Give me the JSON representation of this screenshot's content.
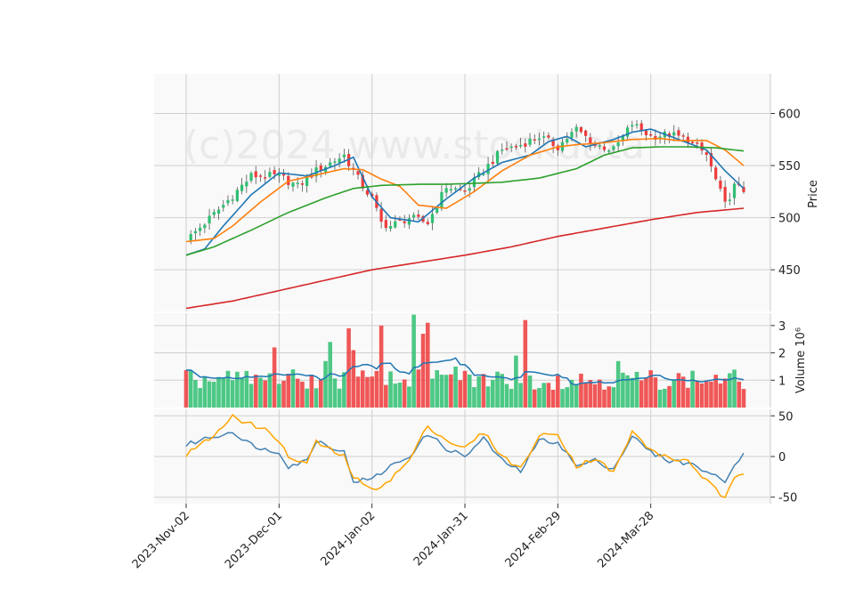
{
  "chart_data": [
    {
      "type": "candlestick",
      "panel": "price",
      "ylabel": "Price",
      "ylim": [
        410,
        638
      ],
      "yticks": [
        450,
        500,
        550,
        600
      ],
      "watermark": "(c)2024 www.stockdata",
      "grid": true,
      "xticks": [
        "2023-Nov-02",
        "2023-Dec-01",
        "2024-Jan-02",
        "2024-Jan-31",
        "2024-Feb-29",
        "2024-Mar-28"
      ],
      "xtick_index": [
        0,
        20,
        40,
        60,
        80,
        100
      ],
      "trading_days": 120,
      "up_color": "#2fbf71",
      "down_color": "#ef3b3b",
      "close_anchors": [
        [
          0,
          478
        ],
        [
          8,
          512
        ],
        [
          14,
          540
        ],
        [
          20,
          540
        ],
        [
          24,
          530
        ],
        [
          28,
          545
        ],
        [
          34,
          560
        ],
        [
          38,
          530
        ],
        [
          40,
          518
        ],
        [
          42,
          495
        ],
        [
          44,
          492
        ],
        [
          48,
          500
        ],
        [
          52,
          495
        ],
        [
          56,
          530
        ],
        [
          60,
          525
        ],
        [
          64,
          545
        ],
        [
          68,
          565
        ],
        [
          72,
          570
        ],
        [
          76,
          578
        ],
        [
          80,
          568
        ],
        [
          84,
          585
        ],
        [
          88,
          570
        ],
        [
          92,
          565
        ],
        [
          96,
          590
        ],
        [
          100,
          578
        ],
        [
          104,
          580
        ],
        [
          108,
          575
        ],
        [
          112,
          560
        ],
        [
          116,
          512
        ],
        [
          118,
          530
        ],
        [
          120,
          526
        ]
      ],
      "moving_averages": [
        {
          "color": "#1f77b4",
          "anchors": [
            [
              0,
              464
            ],
            [
              4,
              470
            ],
            [
              8,
              492
            ],
            [
              14,
              522
            ],
            [
              20,
              543
            ],
            [
              26,
              540
            ],
            [
              32,
              550
            ],
            [
              36,
              558
            ],
            [
              40,
              520
            ],
            [
              44,
              500
            ],
            [
              50,
              496
            ],
            [
              56,
              518
            ],
            [
              62,
              538
            ],
            [
              68,
              553
            ],
            [
              74,
              560
            ],
            [
              78,
              573
            ],
            [
              82,
              578
            ],
            [
              86,
              568
            ],
            [
              92,
              575
            ],
            [
              96,
              582
            ],
            [
              100,
              585
            ],
            [
              106,
              575
            ],
            [
              112,
              565
            ],
            [
              116,
              545
            ],
            [
              120,
              528
            ]
          ]
        },
        {
          "color": "#ff7f0e",
          "anchors": [
            [
              0,
              477
            ],
            [
              6,
              480
            ],
            [
              10,
              492
            ],
            [
              16,
              515
            ],
            [
              22,
              535
            ],
            [
              28,
              541
            ],
            [
              34,
              547
            ],
            [
              38,
              546
            ],
            [
              42,
              537
            ],
            [
              46,
              530
            ],
            [
              50,
              512
            ],
            [
              56,
              509
            ],
            [
              62,
              525
            ],
            [
              68,
              545
            ],
            [
              74,
              560
            ],
            [
              80,
              568
            ],
            [
              84,
              570
            ],
            [
              90,
              572
            ],
            [
              96,
              575
            ],
            [
              102,
              576
            ],
            [
              106,
              574
            ],
            [
              112,
              574
            ],
            [
              116,
              565
            ],
            [
              120,
              550
            ]
          ]
        },
        {
          "color": "#2ca02c",
          "anchors": [
            [
              0,
              464
            ],
            [
              6,
              472
            ],
            [
              14,
              488
            ],
            [
              22,
              505
            ],
            [
              30,
              519
            ],
            [
              36,
              528
            ],
            [
              42,
              531
            ],
            [
              50,
              532
            ],
            [
              56,
              532
            ],
            [
              62,
              533
            ],
            [
              68,
              534
            ],
            [
              76,
              538
            ],
            [
              84,
              547
            ],
            [
              90,
              560
            ],
            [
              96,
              567
            ],
            [
              102,
              568
            ],
            [
              108,
              568
            ],
            [
              114,
              567
            ],
            [
              120,
              564
            ]
          ]
        },
        {
          "color": "#d62728",
          "anchors": [
            [
              0,
              413
            ],
            [
              10,
              420
            ],
            [
              20,
              430
            ],
            [
              30,
              440
            ],
            [
              40,
              450
            ],
            [
              50,
              457
            ],
            [
              60,
              464
            ],
            [
              70,
              472
            ],
            [
              80,
              482
            ],
            [
              90,
              490
            ],
            [
              100,
              498
            ],
            [
              110,
              505
            ],
            [
              120,
              509
            ]
          ]
        }
      ]
    },
    {
      "type": "bar",
      "panel": "volume",
      "ylabel": "Volume  10⁶",
      "ylim": [
        0,
        3.45
      ],
      "yticks": [
        1,
        2,
        3
      ],
      "vol_ma_color": "#1f77b4",
      "spikes": [
        [
          19,
          2.2
        ],
        [
          35,
          2.9
        ],
        [
          36,
          2.1
        ],
        [
          42,
          3.0
        ],
        [
          49,
          3.4
        ],
        [
          51,
          2.7
        ],
        [
          52,
          3.1
        ],
        [
          73,
          3.2
        ],
        [
          71,
          1.9
        ],
        [
          93,
          1.7
        ],
        [
          58,
          1.5
        ],
        [
          30,
          1.7
        ],
        [
          31,
          2.4
        ]
      ]
    },
    {
      "type": "line",
      "panel": "oscillator",
      "ylim": [
        -58,
        58
      ],
      "yticks": [
        -50,
        0,
        50
      ],
      "series": [
        {
          "color": "#4682b4",
          "anchors": [
            [
              0,
              14
            ],
            [
              4,
              22
            ],
            [
              8,
              27
            ],
            [
              10,
              32
            ],
            [
              12,
              20
            ],
            [
              18,
              6
            ],
            [
              20,
              6
            ],
            [
              22,
              -12
            ],
            [
              26,
              -5
            ],
            [
              28,
              20
            ],
            [
              32,
              10
            ],
            [
              34,
              5
            ],
            [
              36,
              -30
            ],
            [
              40,
              -28
            ],
            [
              44,
              -12
            ],
            [
              48,
              0
            ],
            [
              52,
              28
            ],
            [
              56,
              10
            ],
            [
              60,
              0
            ],
            [
              64,
              22
            ],
            [
              68,
              -5
            ],
            [
              72,
              -18
            ],
            [
              76,
              20
            ],
            [
              80,
              18
            ],
            [
              84,
              -12
            ],
            [
              88,
              -5
            ],
            [
              92,
              -15
            ],
            [
              96,
              25
            ],
            [
              100,
              5
            ],
            [
              104,
              -5
            ],
            [
              108,
              -8
            ],
            [
              112,
              -18
            ],
            [
              116,
              -32
            ],
            [
              118,
              -8
            ],
            [
              120,
              3
            ]
          ]
        },
        {
          "color": "#ffa500",
          "anchors": [
            [
              0,
              2
            ],
            [
              4,
              18
            ],
            [
              8,
              35
            ],
            [
              10,
              52
            ],
            [
              12,
              44
            ],
            [
              18,
              30
            ],
            [
              20,
              20
            ],
            [
              22,
              -2
            ],
            [
              26,
              -8
            ],
            [
              28,
              18
            ],
            [
              32,
              5
            ],
            [
              34,
              0
            ],
            [
              36,
              -25
            ],
            [
              40,
              -42
            ],
            [
              44,
              -28
            ],
            [
              48,
              -5
            ],
            [
              52,
              38
            ],
            [
              56,
              20
            ],
            [
              60,
              10
            ],
            [
              64,
              30
            ],
            [
              68,
              0
            ],
            [
              72,
              -15
            ],
            [
              76,
              25
            ],
            [
              80,
              28
            ],
            [
              84,
              -12
            ],
            [
              88,
              -2
            ],
            [
              92,
              -20
            ],
            [
              96,
              30
            ],
            [
              100,
              8
            ],
            [
              104,
              -3
            ],
            [
              108,
              -5
            ],
            [
              112,
              -30
            ],
            [
              116,
              -52
            ],
            [
              118,
              -28
            ],
            [
              120,
              -20
            ]
          ]
        }
      ]
    }
  ]
}
